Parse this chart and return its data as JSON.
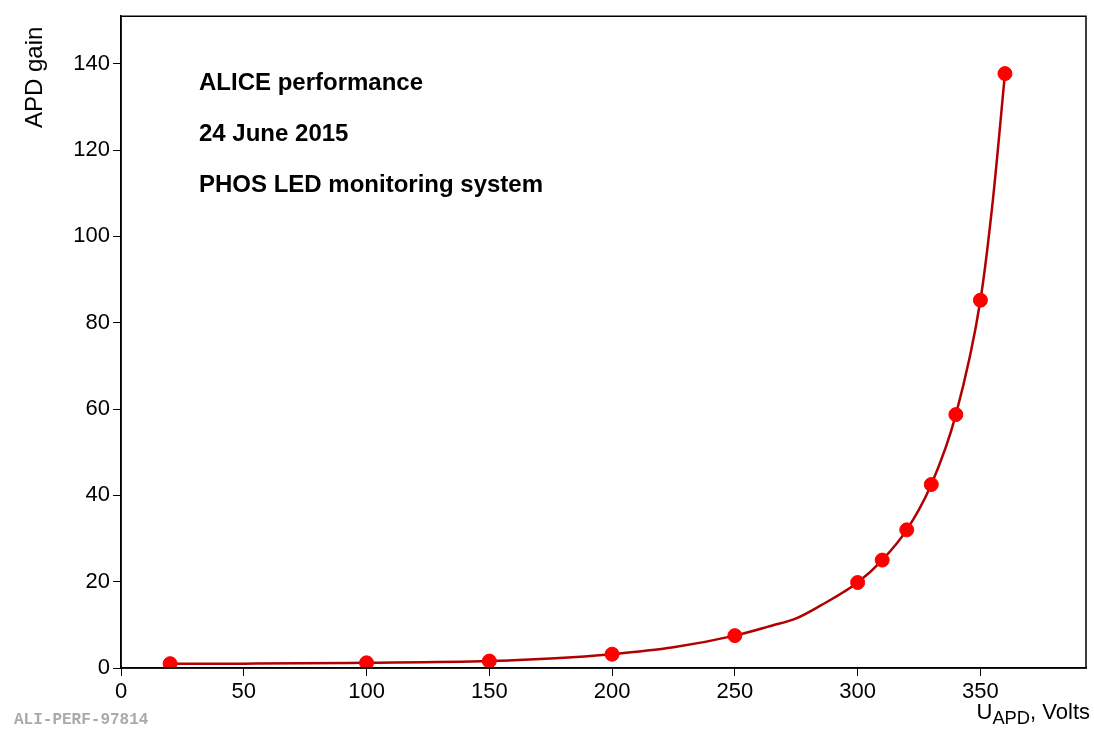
{
  "chart_data": {
    "type": "scatter",
    "xlabel": "U$_{APD}$, Volts",
    "ylabel": "APD gain",
    "annotations": [
      "ALICE performance",
      "24 June 2015",
      "PHOS LED monitoring system",
      "ALI-PERF-97814"
    ],
    "xlim": [
      0,
      393
    ],
    "xticks": [
      0,
      50,
      100,
      150,
      200,
      250,
      300,
      350
    ],
    "ylim": [
      0,
      151
    ],
    "yticks": [
      0,
      20,
      40,
      60,
      80,
      100,
      120,
      140
    ],
    "grid": false,
    "legend": false,
    "marker": "circle",
    "series": [
      {
        "type": "line",
        "color": "#b00000",
        "marker": "none",
        "line_style": "solid",
        "x": [
          20,
          50,
          100,
          150,
          175,
          200,
          225,
          250,
          265,
          275,
          285,
          300,
          310,
          320,
          330,
          340,
          350,
          355,
          360
        ],
        "values": [
          1,
          1,
          1.2,
          1.6,
          2.2,
          3.2,
          4.8,
          7.5,
          9.8,
          11.5,
          14.5,
          19.8,
          25,
          32,
          42.5,
          58.7,
          85.2,
          108,
          137.7
        ]
      },
      {
        "color": "#ff0000",
        "x": [
          20,
          100,
          150,
          200,
          250,
          300,
          310,
          320,
          330,
          340,
          350,
          360
        ],
        "values": [
          1,
          1.2,
          1.6,
          3.2,
          7.5,
          19.8,
          25,
          32,
          42.5,
          58.7,
          85.2,
          137.7
        ]
      }
    ]
  }
}
